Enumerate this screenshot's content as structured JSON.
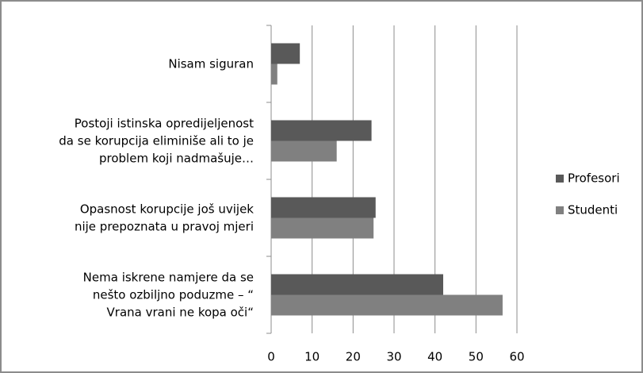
{
  "chart_data": {
    "type": "bar",
    "orientation": "horizontal",
    "categories": [
      "Nisam siguran",
      "Postoji istinska opredijeljenost\nda se korupcija eliminiše ali to je\nproblem koji nadmašuje…",
      "Opasnost korupcije još uvijek\nnije prepoznata u pravoj mjeri",
      "Nema iskrene namjere da se\nnešto ozbiljno poduzme – “\nVrana vrani ne kopa oči“"
    ],
    "series": [
      {
        "name": "Profesori",
        "color": "#595959",
        "values": [
          7,
          24.5,
          25.5,
          42
        ]
      },
      {
        "name": "Studenti",
        "color": "#808080",
        "values": [
          1.5,
          16,
          25,
          56.5
        ]
      }
    ],
    "xlim": [
      0,
      60
    ],
    "xticks": [
      0,
      10,
      20,
      30,
      40,
      50,
      60
    ],
    "grid": true,
    "legend": "right"
  }
}
